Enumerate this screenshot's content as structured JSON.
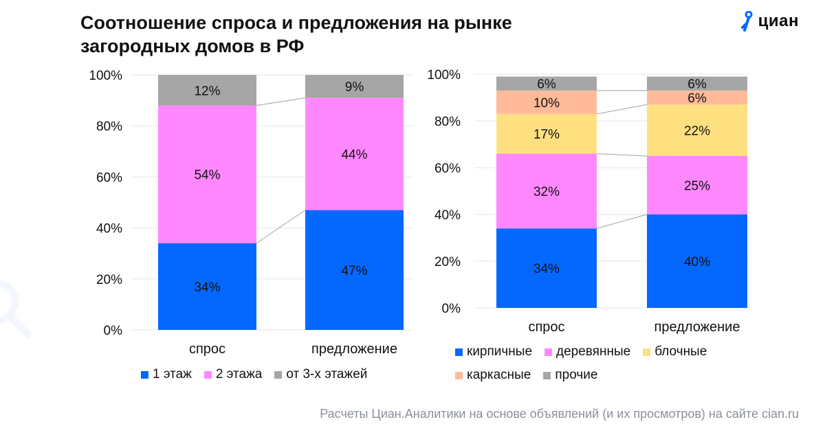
{
  "title": "Соотношение спроса и предложения на рынке загородных домов в РФ",
  "brand": {
    "name": "циан"
  },
  "footnote": "Расчеты Циан.Аналитики на основе объявлений (и их просмотров) на сайте cian.ru",
  "colors": {
    "accent": "#0468FF"
  },
  "chart_data": [
    {
      "type": "bar",
      "stacked": true,
      "categories": [
        "спрос",
        "предложение"
      ],
      "series": [
        {
          "name": "1 этаж",
          "values": [
            34,
            47
          ],
          "color": "#0468FF"
        },
        {
          "name": "2 этажа",
          "values": [
            54,
            44
          ],
          "color": "#FF88FF"
        },
        {
          "name": "от 3-х этажей",
          "values": [
            12,
            9
          ],
          "color": "#A6A6A6"
        }
      ],
      "yticks": [
        "0%",
        "20%",
        "40%",
        "60%",
        "80%",
        "100%"
      ],
      "ylim": [
        0,
        100
      ],
      "grid": true,
      "legend": "bottom"
    },
    {
      "type": "bar",
      "stacked": true,
      "categories": [
        "спрос",
        "предложение"
      ],
      "series": [
        {
          "name": "кирпичные",
          "values": [
            34,
            40
          ],
          "color": "#0468FF"
        },
        {
          "name": "деревянные",
          "values": [
            32,
            25
          ],
          "color": "#FF88FF"
        },
        {
          "name": "блочные",
          "values": [
            17,
            22
          ],
          "color": "#FFE080"
        },
        {
          "name": "каркасные",
          "values": [
            10,
            6
          ],
          "color": "#FFBB99"
        },
        {
          "name": "прочие",
          "values": [
            6,
            6
          ],
          "color": "#A6A6A6"
        }
      ],
      "yticks": [
        "0%",
        "20%",
        "40%",
        "60%",
        "80%",
        "100%"
      ],
      "ylim": [
        0,
        100
      ],
      "grid": true,
      "legend": "bottom"
    }
  ]
}
